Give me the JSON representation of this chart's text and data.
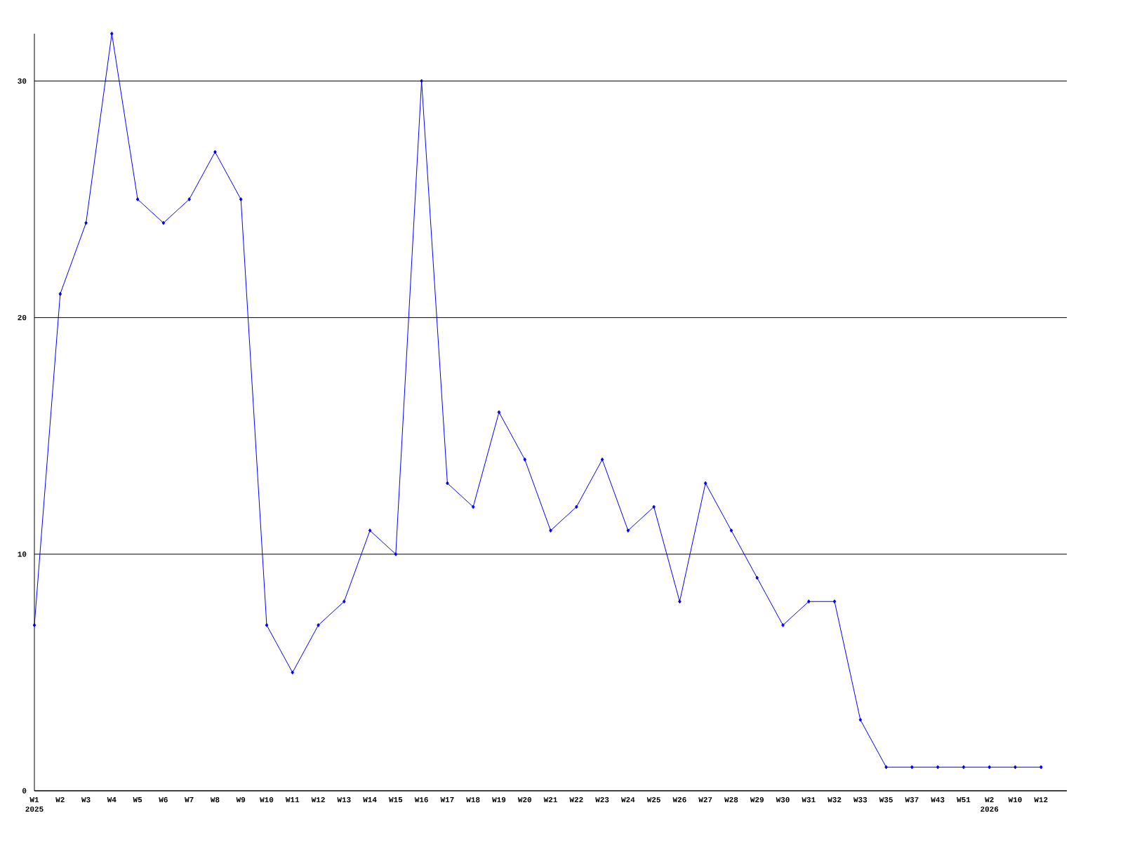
{
  "chart_data": {
    "type": "line",
    "categories": [
      "W1",
      "W2",
      "W3",
      "W4",
      "W5",
      "W6",
      "W7",
      "W8",
      "W9",
      "W10",
      "W11",
      "W12",
      "W13",
      "W14",
      "W15",
      "W16",
      "W17",
      "W18",
      "W19",
      "W20",
      "W21",
      "W22",
      "W23",
      "W24",
      "W25",
      "W26",
      "W27",
      "W28",
      "W29",
      "W30",
      "W31",
      "W32",
      "W33",
      "W35",
      "W37",
      "W43",
      "W51",
      "W2",
      "W10",
      "W12"
    ],
    "values": [
      7,
      21,
      24,
      32,
      25,
      24,
      25,
      27,
      25,
      7,
      5,
      7,
      8,
      11,
      10,
      30,
      13,
      12,
      16,
      14,
      11,
      12,
      14,
      11,
      12,
      8,
      13,
      11,
      9,
      7,
      8,
      8,
      3,
      1,
      1,
      1,
      1,
      1,
      1,
      1
    ],
    "color": "#0000ff",
    "ylim": [
      0,
      32
    ],
    "yticks": [
      0,
      10,
      20,
      30
    ],
    "grid": "y",
    "marker": "diamond",
    "line_style": "solid",
    "annotations": [
      "2025",
      "2026"
    ]
  }
}
